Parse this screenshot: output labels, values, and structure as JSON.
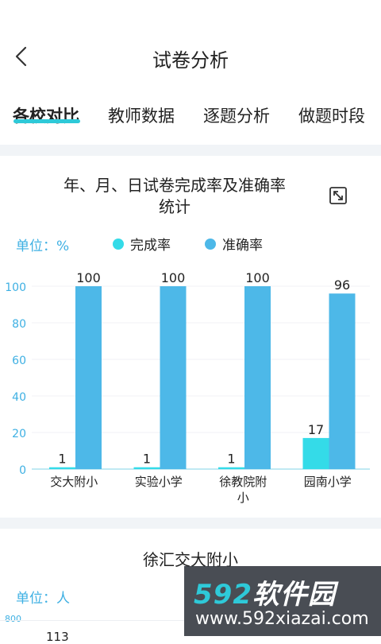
{
  "header": {
    "title": "试卷分析",
    "back_icon": "chevron-left-icon"
  },
  "tabs": [
    {
      "label": "各校对比",
      "active": true
    },
    {
      "label": "教师数据",
      "active": false
    },
    {
      "label": "逐题分析",
      "active": false
    },
    {
      "label": "做题时段",
      "active": false
    }
  ],
  "card1": {
    "title_line1": "年、月、日试卷完成率及准确率",
    "title_line2": "统计",
    "expand_icon": "expand-icon",
    "unit_label": "单位：%",
    "legend": [
      {
        "label": "完成率",
        "color": "#34dbe8"
      },
      {
        "label": "准确率",
        "color": "#4db8e8"
      }
    ]
  },
  "chart_data": {
    "type": "bar",
    "categories": [
      "交大附小",
      "实验小学",
      "徐教院附小",
      "园南小学"
    ],
    "series": [
      {
        "name": "完成率",
        "values": [
          1,
          1,
          1,
          17
        ],
        "color": "#34dbe8"
      },
      {
        "name": "准确率",
        "values": [
          100,
          100,
          100,
          96
        ],
        "color": "#4db8e8"
      }
    ],
    "yticks": [
      0,
      20,
      40,
      60,
      80,
      100
    ],
    "ylim": [
      0,
      100
    ],
    "grid": true
  },
  "card2": {
    "title": "徐汇交大附小",
    "unit_label": "单位：人",
    "ytick_top": "800",
    "partial_label": "113"
  },
  "watermark": {
    "brand_num": "592",
    "brand_text": "软件园",
    "url": "www.592xiazai.com"
  }
}
